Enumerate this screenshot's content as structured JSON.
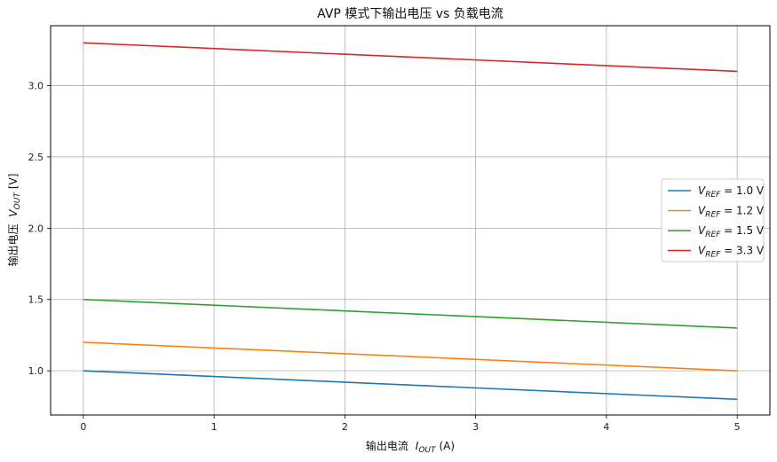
{
  "chart_data": {
    "type": "line",
    "title": "AVP 模式下输出电压 vs 负载电流",
    "xlabel": "输出电流 I_OUT (A)",
    "xlabel_main": "输出电流",
    "xlabel_sym": "I",
    "xlabel_sub": "OUT",
    "xlabel_unit": "(A)",
    "ylabel": "输出电压 V_OUT [V]",
    "ylabel_main": "输出电压",
    "ylabel_sym": "V",
    "ylabel_sub": "OUT",
    "ylabel_unit": "[V]",
    "xlim": [
      -0.25,
      5.25
    ],
    "ylim": [
      0.69,
      3.42
    ],
    "xticks": [
      0,
      1,
      2,
      3,
      4,
      5
    ],
    "xtick_labels": [
      "0",
      "1",
      "2",
      "3",
      "4",
      "5"
    ],
    "yticks": [
      1.0,
      1.5,
      2.0,
      2.5,
      3.0
    ],
    "ytick_labels": [
      "1.0",
      "1.5",
      "2.0",
      "2.5",
      "3.0"
    ],
    "grid": true,
    "legend_position": "center-right",
    "series": [
      {
        "name": "V_REF = 1.0 V",
        "sym": "V",
        "sub": "REF",
        "rest": " = 1.0 V",
        "color": "#1f77b4",
        "x": [
          0,
          5
        ],
        "y": [
          1.0,
          0.8
        ]
      },
      {
        "name": "V_REF = 1.2 V",
        "sym": "V",
        "sub": "REF",
        "rest": " = 1.2 V",
        "color": "#ff7f0e",
        "x": [
          0,
          5
        ],
        "y": [
          1.2,
          1.0
        ]
      },
      {
        "name": "V_REF = 1.5 V",
        "sym": "V",
        "sub": "REF",
        "rest": " = 1.5 V",
        "color": "#2ca02c",
        "x": [
          0,
          5
        ],
        "y": [
          1.5,
          1.3
        ]
      },
      {
        "name": "V_REF = 3.3 V",
        "sym": "V",
        "sub": "REF",
        "rest": " = 3.3 V",
        "color": "#d62728",
        "x": [
          0,
          5
        ],
        "y": [
          3.3,
          3.1
        ]
      }
    ]
  }
}
